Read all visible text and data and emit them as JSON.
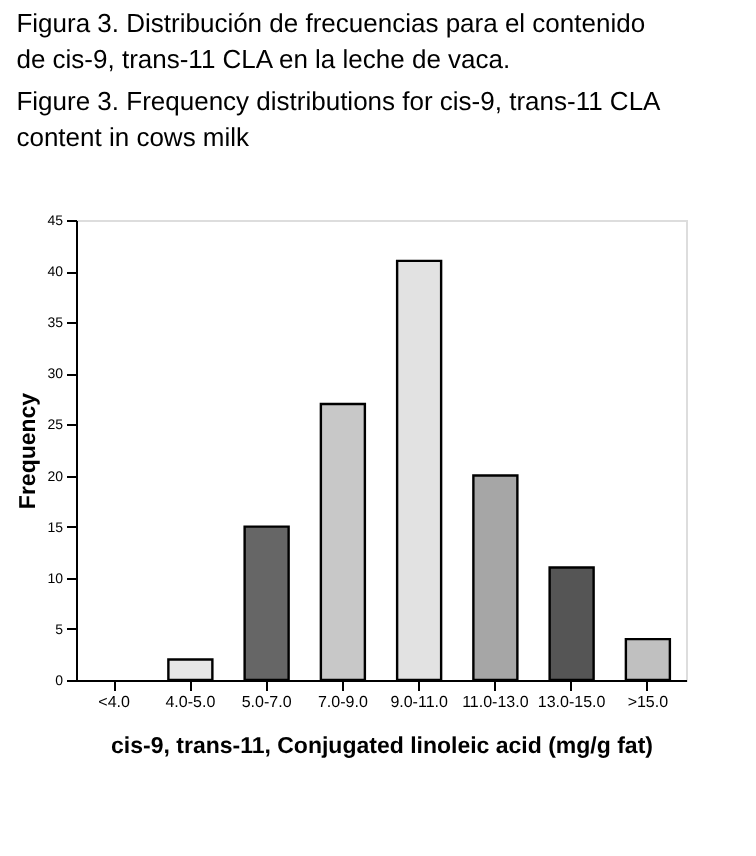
{
  "chart_data": {
    "type": "bar",
    "title": "Figura 3.  Distribución de frecuencias para el contenido de cis-9, trans-11 CLA en la leche de vaca.",
    "subtitle": "Figure 3. Frequency distributions for cis-9, trans-11 CLA content in cows milk",
    "xlabel": "cis-9, trans-11,  Conjugated linoleic acid  (mg/g fat)",
    "ylabel": "Frequency",
    "categories": [
      "<4.0",
      "4.0-5.0",
      "5.0-7.0",
      "7.0-9.0",
      "9.0-11.0",
      "11.0-13.0",
      "13.0-15.0",
      ">15.0"
    ],
    "values": [
      0,
      2,
      15,
      27,
      41,
      20,
      11,
      4
    ],
    "colors": [
      "#ffffff",
      "#e6e6e6",
      "#666666",
      "#c8c8c8",
      "#e2e2e2",
      "#a6a6a6",
      "#555555",
      "#c0c0c0"
    ],
    "ylim": [
      0,
      45
    ],
    "yticks": [
      0,
      5,
      10,
      15,
      20,
      25,
      30,
      35,
      40,
      45
    ],
    "grid": false
  }
}
